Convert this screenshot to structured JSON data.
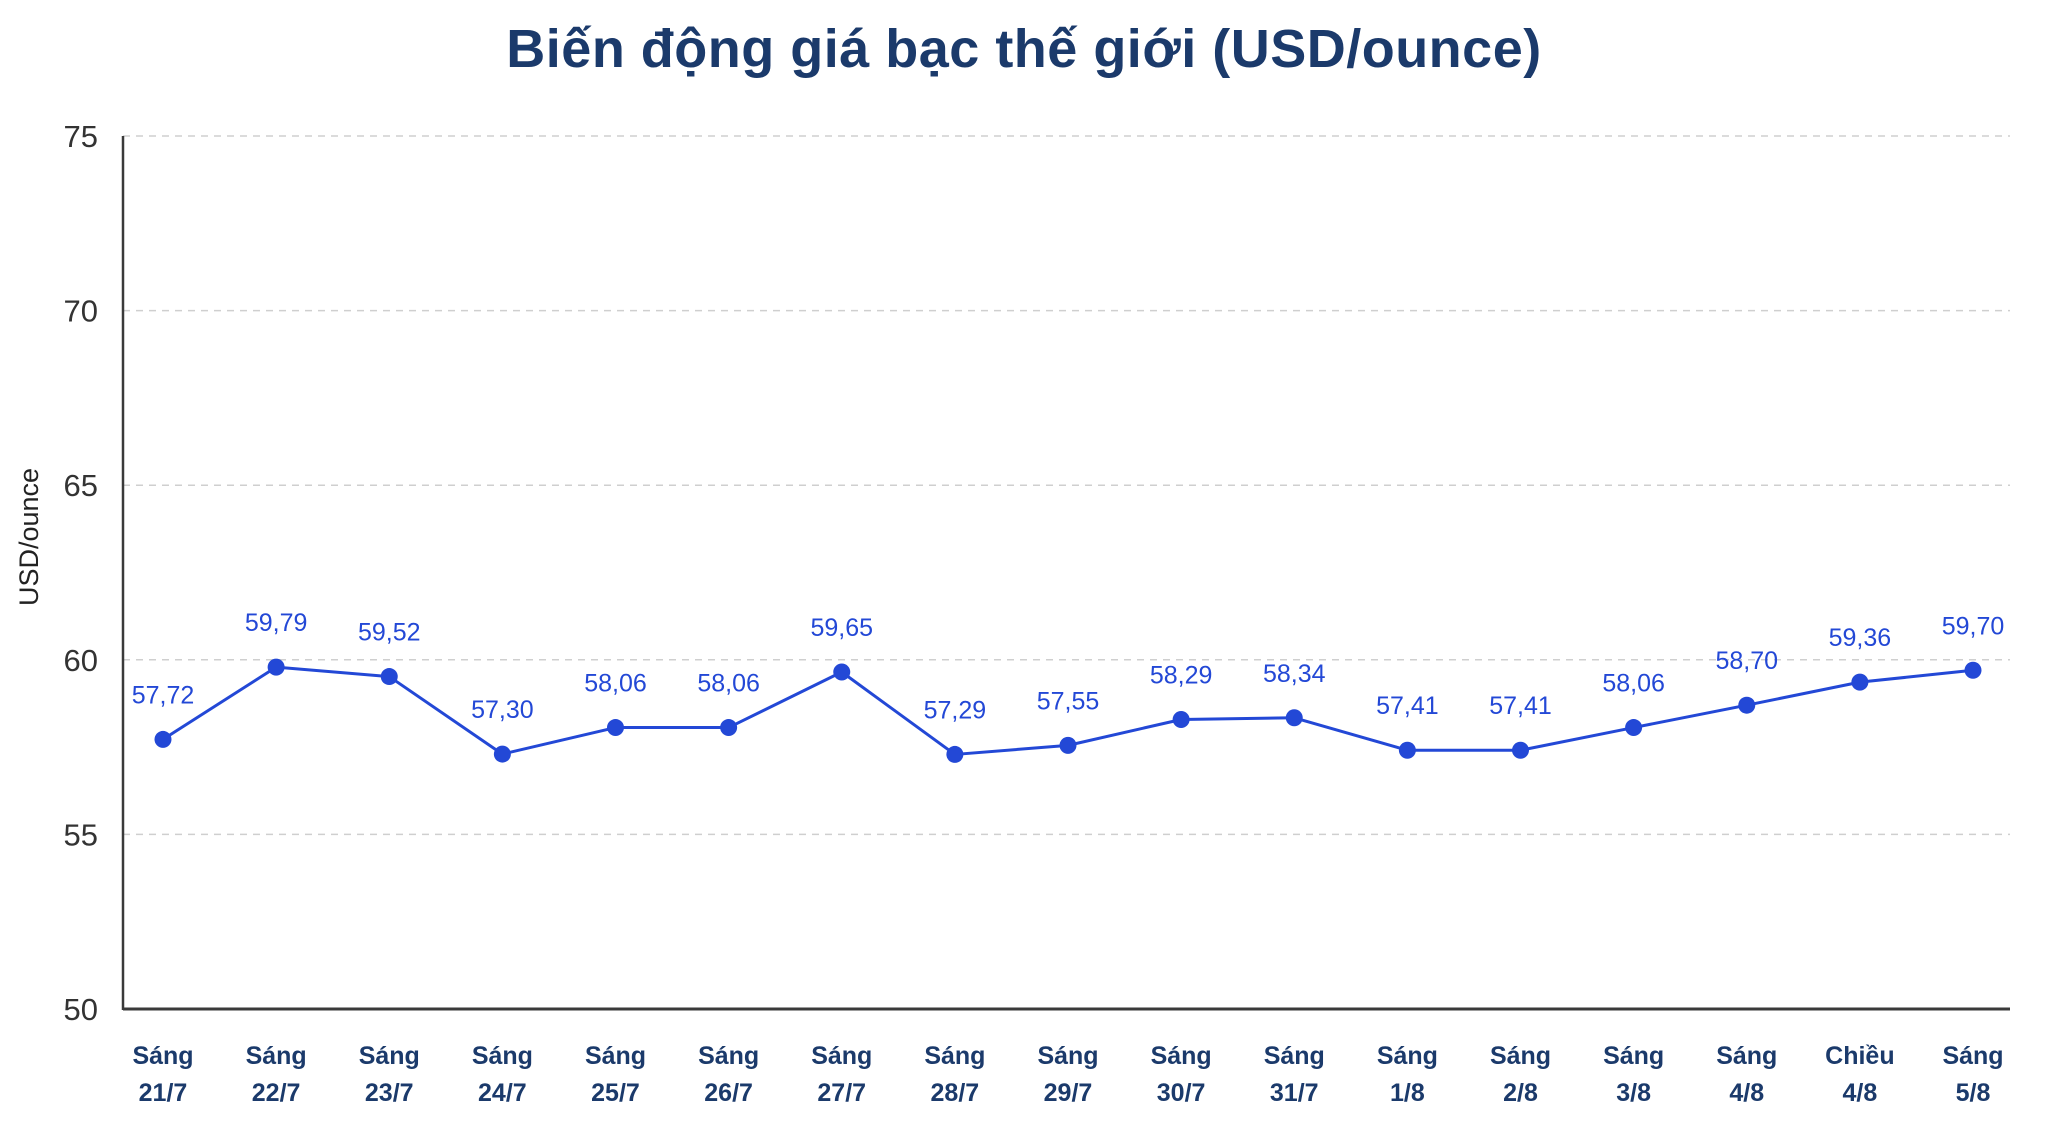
{
  "chart_data": {
    "type": "line",
    "title": "Biến động giá bạc thế giới (USD/ounce)",
    "ylabel": "USD/ounce",
    "xlabel": "",
    "ylim": [
      50,
      75
    ],
    "yticks": [
      50,
      55,
      60,
      65,
      70,
      75
    ],
    "grid": true,
    "line_color": "#2348d6",
    "categories": [
      [
        "Sáng",
        "21/7"
      ],
      [
        "Sáng",
        "22/7"
      ],
      [
        "Sáng",
        "23/7"
      ],
      [
        "Sáng",
        "24/7"
      ],
      [
        "Sáng",
        "25/7"
      ],
      [
        "Sáng",
        "26/7"
      ],
      [
        "Sáng",
        "27/7"
      ],
      [
        "Sáng",
        "28/7"
      ],
      [
        "Sáng",
        "29/7"
      ],
      [
        "Sáng",
        "30/7"
      ],
      [
        "Sáng",
        "31/7"
      ],
      [
        "Sáng",
        "1/8"
      ],
      [
        "Sáng",
        "2/8"
      ],
      [
        "Sáng",
        "3/8"
      ],
      [
        "Sáng",
        "4/8"
      ],
      [
        "Chiều",
        "4/8"
      ],
      [
        "Sáng",
        "5/8"
      ]
    ],
    "values": [
      57.72,
      59.79,
      59.52,
      57.3,
      58.06,
      58.06,
      59.65,
      57.29,
      57.55,
      58.29,
      58.34,
      57.41,
      57.41,
      58.06,
      58.7,
      59.36,
      59.7
    ],
    "value_labels": [
      "57,72",
      "59,79",
      "59,52",
      "57,30",
      "58,06",
      "58,06",
      "59,65",
      "57,29",
      "57,55",
      "58,29",
      "58,34",
      "57,41",
      "57,41",
      "58,06",
      "58,70",
      "59,36",
      "59,70"
    ]
  }
}
